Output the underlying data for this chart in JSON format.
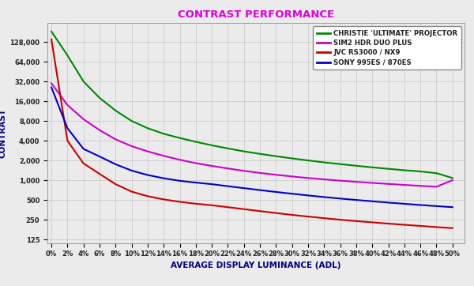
{
  "title": "CONTRAST PERFORMANCE",
  "xlabel": "AVERAGE DISPLAY LUMINANCE (ADL)",
  "ylabel": "CONTRAST",
  "title_color": "#dd00dd",
  "xlabel_color": "#000080",
  "ylabel_color": "#000080",
  "background_color": "#ebebeb",
  "grid_color": "#cccccc",
  "x_ticks_pct": [
    0,
    2,
    4,
    6,
    8,
    10,
    12,
    14,
    16,
    18,
    20,
    22,
    24,
    26,
    28,
    30,
    32,
    34,
    36,
    38,
    40,
    42,
    44,
    46,
    48,
    50
  ],
  "yticks": [
    125,
    250,
    500,
    1000,
    2000,
    4000,
    8000,
    16000,
    32000,
    64000,
    128000
  ],
  "ytick_labels": [
    "125",
    "250",
    "500",
    "1,000",
    "2,000",
    "4,000",
    "8,000",
    "16,000",
    "32,000",
    "64,000",
    "128,000"
  ],
  "ylim_min": 110,
  "ylim_max": 250000,
  "series": [
    {
      "label": "CHRISTIE 'ULTIMATE' PROJECTOR",
      "color": "#008800",
      "x": [
        0,
        2,
        4,
        6,
        8,
        10,
        12,
        14,
        16,
        18,
        20,
        22,
        24,
        26,
        28,
        30,
        32,
        34,
        36,
        38,
        40,
        42,
        44,
        46,
        48,
        50
      ],
      "y": [
        185000,
        80000,
        32000,
        18000,
        11500,
        8000,
        6200,
        5100,
        4400,
        3850,
        3400,
        3050,
        2750,
        2520,
        2320,
        2150,
        2000,
        1870,
        1760,
        1660,
        1570,
        1490,
        1420,
        1360,
        1280,
        1080
      ]
    },
    {
      "label": "SIM2 HDR DUO PLUS",
      "color": "#cc00cc",
      "x": [
        0,
        2,
        4,
        6,
        8,
        10,
        12,
        14,
        16,
        18,
        20,
        22,
        24,
        26,
        28,
        30,
        32,
        34,
        36,
        38,
        40,
        42,
        44,
        46,
        48,
        50
      ],
      "y": [
        30000,
        14000,
        8500,
        5800,
        4200,
        3300,
        2750,
        2350,
        2050,
        1820,
        1650,
        1510,
        1390,
        1290,
        1210,
        1140,
        1080,
        1030,
        985,
        945,
        910,
        878,
        848,
        820,
        795,
        1000
      ]
    },
    {
      "label": "JVC RS3000 / NX9",
      "color": "#cc0000",
      "x": [
        0,
        2,
        4,
        6,
        8,
        10,
        12,
        14,
        16,
        18,
        20,
        22,
        24,
        26,
        28,
        30,
        32,
        34,
        36,
        38,
        40,
        42,
        44,
        46,
        48,
        50
      ],
      "y": [
        140000,
        4000,
        1800,
        1250,
        870,
        670,
        570,
        510,
        468,
        438,
        415,
        388,
        362,
        338,
        316,
        296,
        279,
        264,
        250,
        238,
        228,
        218,
        209,
        201,
        193,
        186
      ]
    },
    {
      "label": "SONY 995ES / 870ES",
      "color": "#0000cc",
      "x": [
        0,
        2,
        4,
        6,
        8,
        10,
        12,
        14,
        16,
        18,
        20,
        22,
        24,
        26,
        28,
        30,
        32,
        34,
        36,
        38,
        40,
        42,
        44,
        46,
        48,
        50
      ],
      "y": [
        26000,
        6200,
        3000,
        2300,
        1750,
        1400,
        1200,
        1070,
        980,
        920,
        870,
        810,
        757,
        707,
        662,
        622,
        586,
        554,
        525,
        500,
        477,
        456,
        437,
        419,
        403,
        388
      ]
    }
  ]
}
